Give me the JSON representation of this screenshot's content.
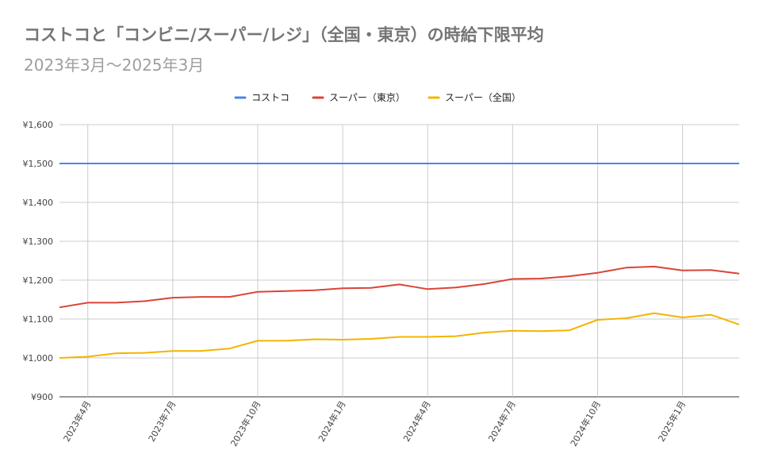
{
  "title": "コストコと「コンビニ/スーパー/レジ」（全国・東京）の時給下限平均",
  "subtitle": "2023年3月〜2025年3月",
  "chart_data": {
    "type": "line",
    "title": "コストコと「コンビニ/スーパー/レジ」（全国・東京）の時給下限平均",
    "subtitle": "2023年3月〜2025年3月",
    "x": [
      "2023年3月",
      "2023年4月",
      "2023年5月",
      "2023年6月",
      "2023年7月",
      "2023年8月",
      "2023年9月",
      "2023年10月",
      "2023年11月",
      "2023年12月",
      "2024年1月",
      "2024年2月",
      "2024年3月",
      "2024年4月",
      "2024年5月",
      "2024年6月",
      "2024年7月",
      "2024年8月",
      "2024年9月",
      "2024年10月",
      "2024年11月",
      "2024年12月",
      "2025年1月",
      "2025年2月",
      "2025年3月"
    ],
    "x_tick_labels": [
      "2023年4月",
      "2023年7月",
      "2023年10月",
      "2024年1月",
      "2024年4月",
      "2024年7月",
      "2024年10月",
      "2025年1月"
    ],
    "x_tick_index": [
      1,
      4,
      7,
      10,
      13,
      16,
      19,
      22
    ],
    "series": [
      {
        "name": "コストコ",
        "color": "#4a86e8",
        "values": [
          1500,
          1500,
          1500,
          1500,
          1500,
          1500,
          1500,
          1500,
          1500,
          1500,
          1500,
          1500,
          1500,
          1500,
          1500,
          1500,
          1500,
          1500,
          1500,
          1500,
          1500,
          1500,
          1500,
          1500,
          1500
        ]
      },
      {
        "name": "スーパー（東京）",
        "color": "#db4437",
        "values": [
          1130,
          1142,
          1142,
          1146,
          1155,
          1157,
          1157,
          1170,
          1172,
          1174,
          1179,
          1180,
          1189,
          1177,
          1181,
          1190,
          1203,
          1204,
          1210,
          1219,
          1232,
          1235,
          1225,
          1226,
          1217
        ]
      },
      {
        "name": "スーパー（全国）",
        "color": "#f4b400",
        "values": [
          1000,
          1003,
          1012,
          1013,
          1018,
          1018,
          1024,
          1044,
          1044,
          1048,
          1047,
          1049,
          1054,
          1054,
          1056,
          1065,
          1070,
          1069,
          1071,
          1098,
          1102,
          1115,
          1104,
          1111,
          1086
        ]
      }
    ],
    "ylim": [
      900,
      1600
    ],
    "y_ticks": [
      900,
      1000,
      1100,
      1200,
      1300,
      1400,
      1500,
      1600
    ],
    "y_tick_labels": [
      "¥900",
      "¥1,000",
      "¥1,100",
      "¥1,200",
      "¥1,300",
      "¥1,400",
      "¥1,500",
      "¥1,600"
    ],
    "grid": true,
    "legend_position": "top"
  }
}
